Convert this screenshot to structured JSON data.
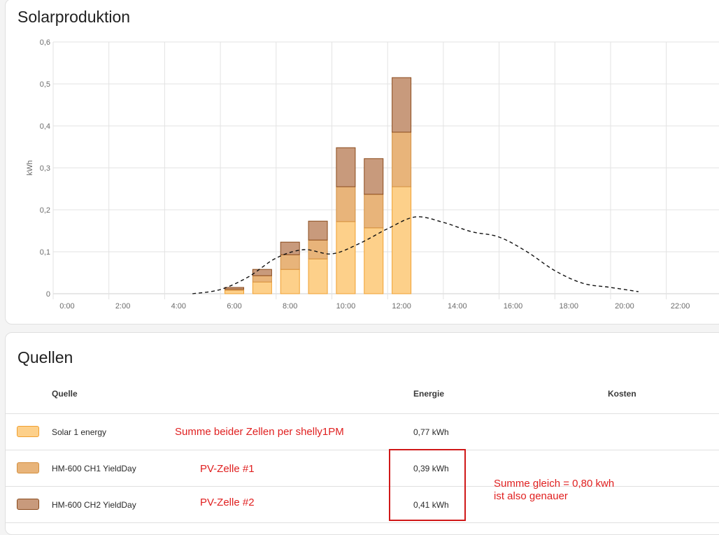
{
  "chart_card": {
    "title": "Solarproduktion"
  },
  "chart_data": {
    "type": "bar",
    "stacked": true,
    "ylabel": "kWh",
    "ylim": [
      0,
      0.6
    ],
    "y_ticks": [
      "0",
      "0,1",
      "0,2",
      "0,3",
      "0,4",
      "0,5",
      "0,6"
    ],
    "x_ticks": [
      "0:00",
      "2:00",
      "4:00",
      "6:00",
      "8:00",
      "10:00",
      "12:00",
      "14:00",
      "16:00",
      "18:00",
      "20:00",
      "22:00"
    ],
    "hours": [
      6,
      7,
      8,
      9,
      10,
      11,
      12
    ],
    "series": [
      {
        "name": "Solar 1 energy",
        "values": [
          0.008,
          0.028,
          0.058,
          0.083,
          0.172,
          0.157,
          0.255
        ],
        "color": "#fdd08a",
        "stroke": "#f0a030"
      },
      {
        "name": "HM-600 CH1 YieldDay",
        "values": [
          0.003,
          0.015,
          0.035,
          0.045,
          0.083,
          0.08,
          0.13
        ],
        "color": "#e8b47a",
        "stroke": "#d49040"
      },
      {
        "name": "HM-600 CH2 YieldDay",
        "values": [
          0.004,
          0.015,
          0.03,
          0.045,
          0.093,
          0.085,
          0.13
        ],
        "color": "#c89a7c",
        "stroke": "#8a4a1c"
      }
    ],
    "forecast": {
      "hours": [
        5,
        6,
        7,
        8,
        9,
        10,
        11,
        12,
        13,
        14,
        15,
        16,
        17,
        18,
        19,
        20,
        21
      ],
      "values": [
        0.0,
        0.01,
        0.04,
        0.085,
        0.105,
        0.095,
        0.12,
        0.155,
        0.183,
        0.17,
        0.148,
        0.135,
        0.1,
        0.055,
        0.025,
        0.015,
        0.005
      ]
    }
  },
  "sources_card": {
    "title": "Quellen",
    "headers": {
      "source": "Quelle",
      "energy": "Energie",
      "cost": "Kosten"
    },
    "rows": [
      {
        "name": "Solar 1 energy",
        "energy": "0,77 kWh",
        "color": "#fdd08a",
        "border": "#f0a030"
      },
      {
        "name": "HM-600 CH1 YieldDay",
        "energy": "0,39 kWh",
        "color": "#e8b47a",
        "border": "#d49040"
      },
      {
        "name": "HM-600 CH2 YieldDay",
        "energy": "0,41 kWh",
        "color": "#c89a7c",
        "border": "#8a4a1c"
      }
    ],
    "annotations": {
      "row1": "Summe beider Zellen per shelly1PM",
      "row2": "PV-Zelle #1",
      "row3": "PV-Zelle #2",
      "sum_line1": "Summe gleich = 0,80 kwh",
      "sum_line2": "ist also genauer"
    }
  }
}
